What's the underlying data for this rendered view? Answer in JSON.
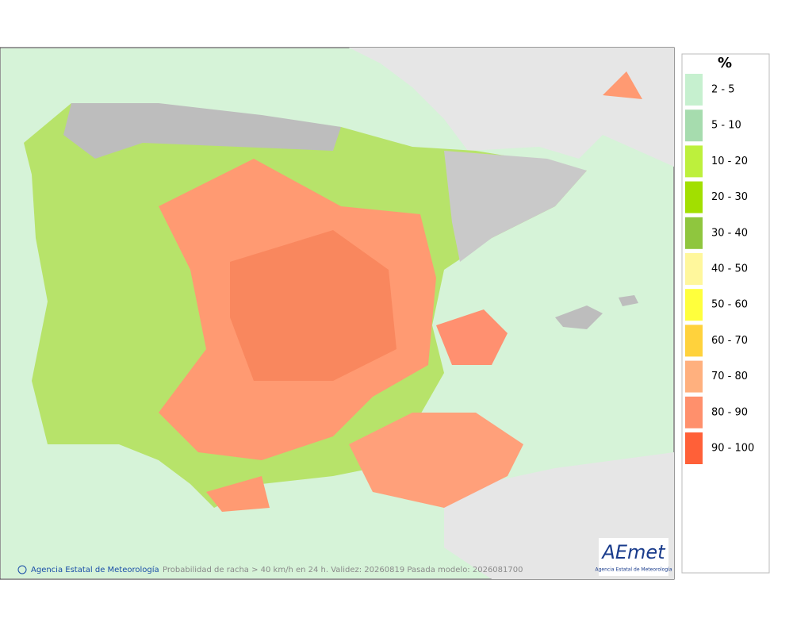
{
  "map": {
    "legend": {
      "title": "%",
      "items": [
        {
          "label": "2 - 5",
          "color": "#c6f0cf"
        },
        {
          "label": "5 - 10",
          "color": "#a6dcae"
        },
        {
          "label": "10 - 20",
          "color": "#bdf03c"
        },
        {
          "label": "20 - 30",
          "color": "#a2df00"
        },
        {
          "label": "30 - 40",
          "color": "#8fc63e"
        },
        {
          "label": "40 - 50",
          "color": "#fff79c"
        },
        {
          "label": "50 - 60",
          "color": "#ffff3c"
        },
        {
          "label": "60 - 70",
          "color": "#ffd23c"
        },
        {
          "label": "70 - 80",
          "color": "#ffb07e"
        },
        {
          "label": "80 - 90",
          "color": "#ff906c"
        },
        {
          "label": "90 - 100",
          "color": "#ff6038"
        }
      ]
    },
    "footer": {
      "credit": "Agencia Estatal de Meteorología",
      "caption": "Probabilidad de racha > 40 km/h en 24 h. Validez: 20260819 Pasada modelo: 2026081700"
    },
    "logo": {
      "text": "AEmet",
      "subtitle": "Agencia Estatal de Meteorología"
    }
  }
}
